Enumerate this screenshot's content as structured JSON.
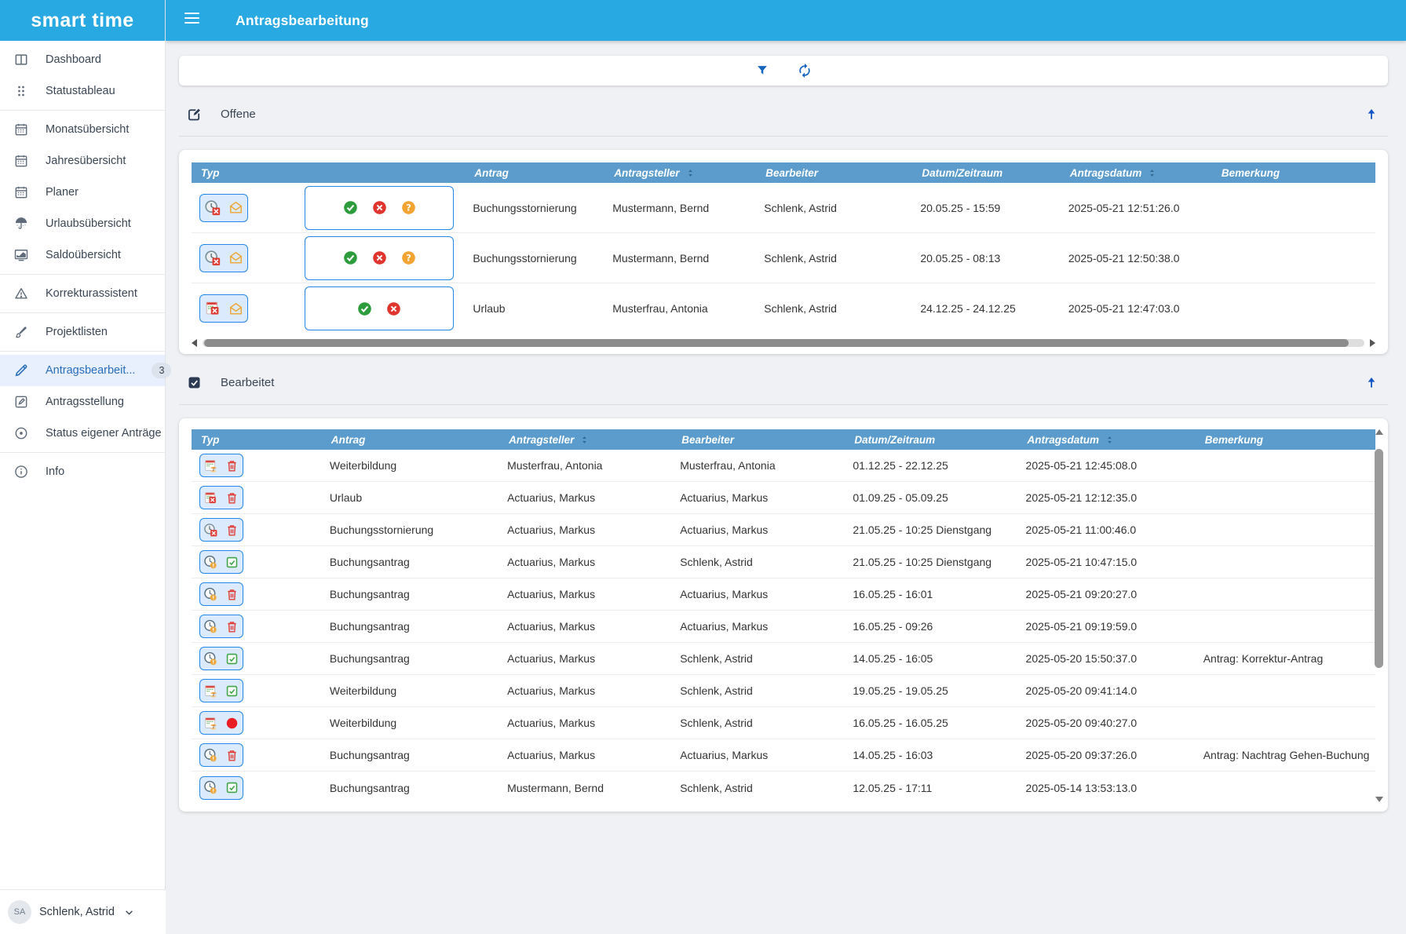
{
  "app": {
    "brand": "smart time",
    "page_title": "Antragsbearbeitung"
  },
  "colors": {
    "appbar_blue": "#29a9e1",
    "table_header_blue": "#5b9ccd",
    "accent_blue": "#1565c0",
    "active_item_blue": "#2a6ebb",
    "approve_green": "#2d9c3c",
    "reject_red": "#e0352f",
    "pending_orange": "#f2a331"
  },
  "sidebar": {
    "groups": [
      [
        {
          "label": "Dashboard",
          "icon": "dashboard"
        },
        {
          "label": "Statustableau",
          "icon": "grid-dots"
        }
      ],
      [
        {
          "label": "Monatsübersicht",
          "icon": "calendar"
        },
        {
          "label": "Jahresübersicht",
          "icon": "calendar"
        },
        {
          "label": "Planer",
          "icon": "calendar"
        },
        {
          "label": "Urlaubsübersicht",
          "icon": "umbrella"
        },
        {
          "label": "Saldoübersicht",
          "icon": "chart-monitor"
        }
      ],
      [
        {
          "label": "Korrekturassistent",
          "icon": "warning-triangle"
        }
      ],
      [
        {
          "label": "Projektlisten",
          "icon": "paintbrush"
        }
      ],
      [
        {
          "label": "Antragsbearbeit...",
          "icon": "pencil",
          "active": true,
          "badge": "3"
        },
        {
          "label": "Antragsstellung",
          "icon": "edit-square"
        },
        {
          "label": "Status eigener Anträge",
          "icon": "status-circle"
        }
      ],
      [
        {
          "label": "Info",
          "icon": "info-circle"
        }
      ]
    ],
    "user": {
      "initials": "SA",
      "name": "Schlenk, Astrid"
    }
  },
  "toolbar": {
    "icons": [
      "filter",
      "refresh"
    ]
  },
  "sections": {
    "open": {
      "title": "Offene",
      "icon": "edit-note"
    },
    "processed": {
      "title": "Bearbeitet",
      "icon": "checkbox-dark"
    }
  },
  "open_table": {
    "columns": [
      {
        "label": "Typ"
      },
      {
        "label": ""
      },
      {
        "label": "Antrag"
      },
      {
        "label": "Antragsteller",
        "sortable": true
      },
      {
        "label": "Bearbeiter"
      },
      {
        "label": "Datum/Zeitraum"
      },
      {
        "label": "Antragsdatum",
        "sortable": true
      },
      {
        "label": "Bemerkung"
      }
    ],
    "rows": [
      {
        "type_icons": [
          "clock-cancel",
          "envelope"
        ],
        "actions": [
          "approve",
          "reject",
          "question"
        ],
        "antrag": "Buchungsstornierung",
        "antragsteller": "Mustermann, Bernd",
        "bearbeiter": "Schlenk, Astrid",
        "datum": "20.05.25 - 15:59",
        "antragsdatum": "2025-05-21 12:51:26.0",
        "bemerkung": ""
      },
      {
        "type_icons": [
          "clock-cancel",
          "envelope"
        ],
        "actions": [
          "approve",
          "reject",
          "question"
        ],
        "antrag": "Buchungsstornierung",
        "antragsteller": "Mustermann, Bernd",
        "bearbeiter": "Schlenk, Astrid",
        "datum": "20.05.25 - 08:13",
        "antragsdatum": "2025-05-21 12:50:38.0",
        "bemerkung": ""
      },
      {
        "type_icons": [
          "calendar-cancel",
          "envelope"
        ],
        "actions": [
          "approve",
          "reject"
        ],
        "antrag": "Urlaub",
        "antragsteller": "Musterfrau, Antonia",
        "bearbeiter": "Schlenk, Astrid",
        "datum": "24.12.25 - 24.12.25",
        "antragsdatum": "2025-05-21 12:47:03.0",
        "bemerkung": ""
      }
    ]
  },
  "processed_table": {
    "columns": [
      {
        "label": "Typ"
      },
      {
        "label": "Antrag"
      },
      {
        "label": "Antragsteller",
        "sortable": true
      },
      {
        "label": "Bearbeiter"
      },
      {
        "label": "Datum/Zeitraum"
      },
      {
        "label": "Antragsdatum",
        "sortable": true
      },
      {
        "label": "Bemerkung"
      }
    ],
    "rows": [
      {
        "type_icons": [
          "calendar-training",
          "trash"
        ],
        "antrag": "Weiterbildung",
        "antragsteller": "Musterfrau, Antonia",
        "bearbeiter": "Musterfrau, Antonia",
        "datum": "01.12.25 - 22.12.25",
        "antragsdatum": "2025-05-21 12:45:08.0",
        "bemerkung": ""
      },
      {
        "type_icons": [
          "calendar-cancel",
          "trash"
        ],
        "antrag": "Urlaub",
        "antragsteller": "Actuarius, Markus",
        "bearbeiter": "Actuarius, Markus",
        "datum": "01.09.25 - 05.09.25",
        "antragsdatum": "2025-05-21 12:12:35.0",
        "bemerkung": ""
      },
      {
        "type_icons": [
          "clock-cancel",
          "trash"
        ],
        "antrag": "Buchungsstornierung",
        "antragsteller": "Actuarius, Markus",
        "bearbeiter": "Actuarius, Markus",
        "datum": "21.05.25 - 10:25 Dienstgang",
        "antragsdatum": "2025-05-21 11:00:46.0",
        "bemerkung": ""
      },
      {
        "type_icons": [
          "clock-pending",
          "check-square"
        ],
        "antrag": "Buchungsantrag",
        "antragsteller": "Actuarius, Markus",
        "bearbeiter": "Schlenk, Astrid",
        "datum": "21.05.25 - 10:25 Dienstgang",
        "antragsdatum": "2025-05-21 10:47:15.0",
        "bemerkung": ""
      },
      {
        "type_icons": [
          "clock-pending",
          "trash"
        ],
        "antrag": "Buchungsantrag",
        "antragsteller": "Actuarius, Markus",
        "bearbeiter": "Actuarius, Markus",
        "datum": "16.05.25 - 16:01",
        "antragsdatum": "2025-05-21 09:20:27.0",
        "bemerkung": ""
      },
      {
        "type_icons": [
          "clock-pending",
          "trash"
        ],
        "antrag": "Buchungsantrag",
        "antragsteller": "Actuarius, Markus",
        "bearbeiter": "Actuarius, Markus",
        "datum": "16.05.25 - 09:26",
        "antragsdatum": "2025-05-21 09:19:59.0",
        "bemerkung": ""
      },
      {
        "type_icons": [
          "clock-pending",
          "check-square"
        ],
        "antrag": "Buchungsantrag",
        "antragsteller": "Actuarius, Markus",
        "bearbeiter": "Schlenk, Astrid",
        "datum": "14.05.25 - 16:05",
        "antragsdatum": "2025-05-20 15:50:37.0",
        "bemerkung": "Antrag: Korrektur-Antrag"
      },
      {
        "type_icons": [
          "calendar-training",
          "check-square"
        ],
        "antrag": "Weiterbildung",
        "antragsteller": "Actuarius, Markus",
        "bearbeiter": "Schlenk, Astrid",
        "datum": "19.05.25 - 19.05.25",
        "antragsdatum": "2025-05-20 09:41:14.0",
        "bemerkung": ""
      },
      {
        "type_icons": [
          "calendar-training",
          "red-dot"
        ],
        "antrag": "Weiterbildung",
        "antragsteller": "Actuarius, Markus",
        "bearbeiter": "Schlenk, Astrid",
        "datum": "16.05.25 - 16.05.25",
        "antragsdatum": "2025-05-20 09:40:27.0",
        "bemerkung": ""
      },
      {
        "type_icons": [
          "clock-pending",
          "trash"
        ],
        "antrag": "Buchungsantrag",
        "antragsteller": "Actuarius, Markus",
        "bearbeiter": "Actuarius, Markus",
        "datum": "14.05.25 - 16:03",
        "antragsdatum": "2025-05-20 09:37:26.0",
        "bemerkung": "Antrag: Nachtrag Gehen-Buchung"
      },
      {
        "type_icons": [
          "clock-pending",
          "check-square"
        ],
        "antrag": "Buchungsantrag",
        "antragsteller": "Mustermann, Bernd",
        "bearbeiter": "Schlenk, Astrid",
        "datum": "12.05.25 - 17:11",
        "antragsdatum": "2025-05-14 13:53:13.0",
        "bemerkung": ""
      }
    ]
  }
}
